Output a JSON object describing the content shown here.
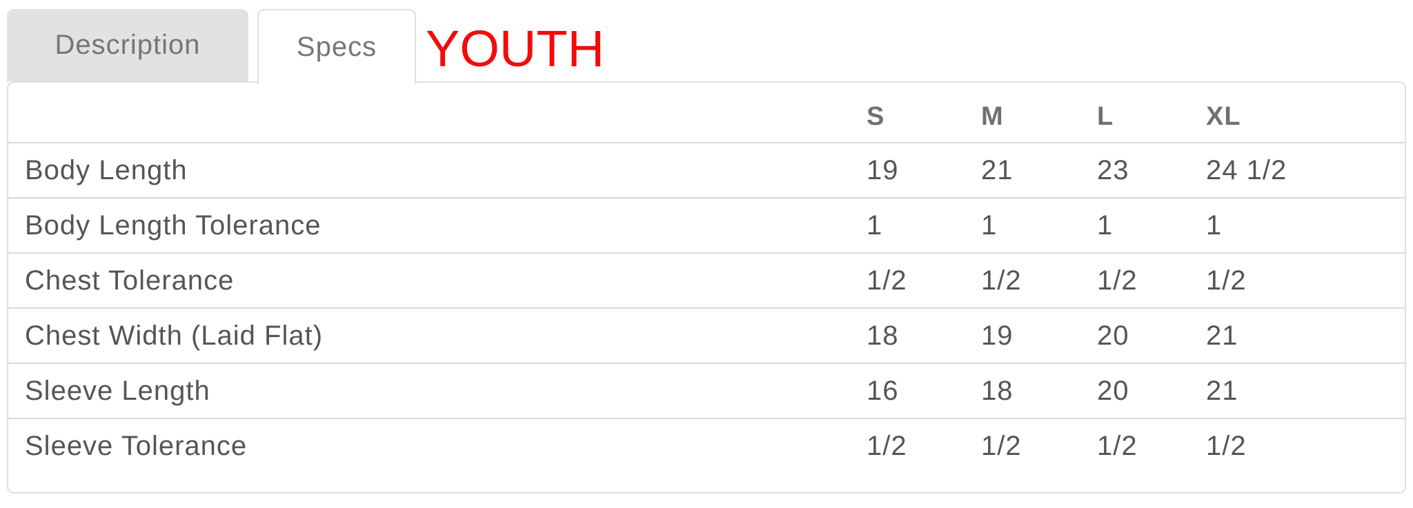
{
  "tabs": {
    "description": {
      "label": "Description",
      "active": false
    },
    "specs": {
      "label": "Specs",
      "active": true
    }
  },
  "heading": {
    "text": "YOUTH"
  },
  "colors": {
    "heading_red": "#f30b0b",
    "tab_inactive_bg": "#e2e2e2",
    "panel_border": "#e0e0e0",
    "row_separator": "#d9d9d9",
    "body_text": "#54555a",
    "header_text": "#6f7074",
    "tab_text": "#74757a"
  },
  "table": {
    "columns": [
      "S",
      "M",
      "L",
      "XL"
    ],
    "rows": [
      {
        "label": "Body Length",
        "values": [
          "19",
          "21",
          "23",
          "24 1/2"
        ]
      },
      {
        "label": "Body Length Tolerance",
        "values": [
          "1",
          "1",
          "1",
          "1"
        ]
      },
      {
        "label": "Chest Tolerance",
        "values": [
          "1/2",
          "1/2",
          "1/2",
          "1/2"
        ]
      },
      {
        "label": "Chest Width (Laid Flat)",
        "values": [
          "18",
          "19",
          "20",
          "21"
        ]
      },
      {
        "label": "Sleeve Length",
        "values": [
          "16",
          "18",
          "20",
          "21"
        ]
      },
      {
        "label": "Sleeve Tolerance",
        "values": [
          "1/2",
          "1/2",
          "1/2",
          "1/2"
        ]
      }
    ]
  }
}
